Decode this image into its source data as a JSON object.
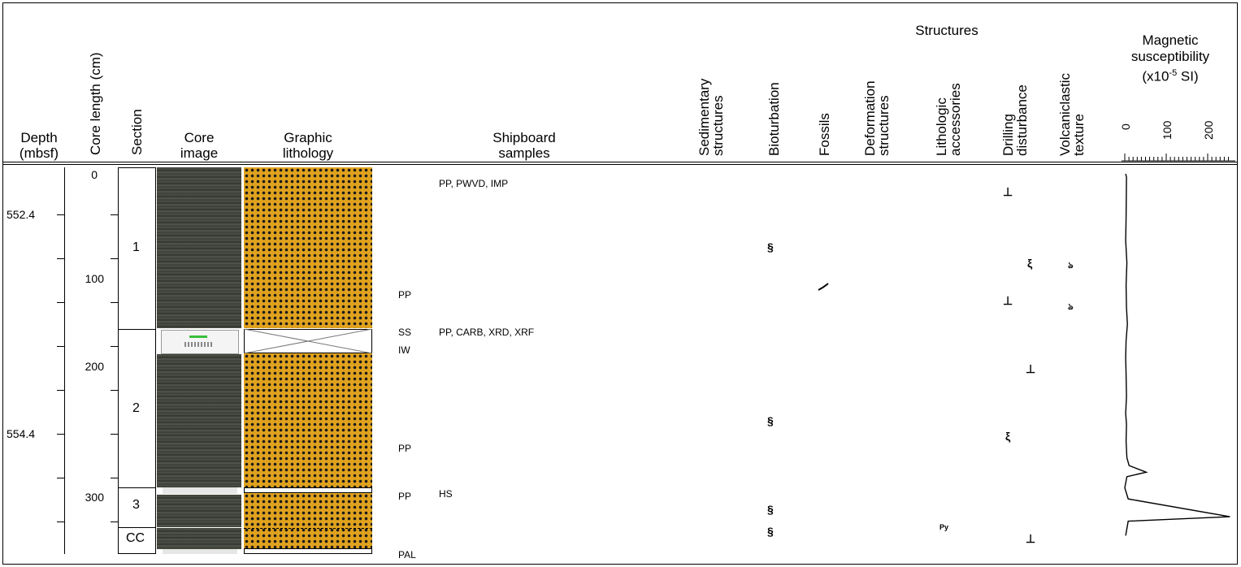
{
  "headers": {
    "depth": [
      "Depth",
      "(mbsf)"
    ],
    "core_length": "Core length (cm)",
    "section": "Section",
    "core_image": [
      "Core",
      "image"
    ],
    "graphic_lithology": [
      "Graphic",
      "lithology"
    ],
    "shipboard_samples": [
      "Shipboard",
      "samples"
    ],
    "structures": "Structures",
    "sedimentary": [
      "Sedimentary",
      "structures"
    ],
    "bioturbation": "Bioturbation",
    "fossils": "Fossils",
    "deformation": [
      "Deformation",
      "structures"
    ],
    "lithologic": [
      "Lithologic",
      "accessories"
    ],
    "drilling": [
      "Drilling",
      "disturbance"
    ],
    "volcaniclastic": [
      "Volcaniclastic",
      "texture"
    ],
    "magnetic": [
      "Magnetic",
      "susceptibility",
      "(x10",
      "-5",
      " SI)"
    ]
  },
  "mag_ticks": [
    "0",
    "100",
    "200"
  ],
  "depth_labels": [
    "552.4",
    "554.4"
  ],
  "core_length_labels": [
    "0",
    "100",
    "200",
    "300"
  ],
  "sections": [
    "1",
    "2",
    "3",
    "CC"
  ],
  "samples": {
    "s1": "PP, PWVD, IMP",
    "s2": "PP",
    "s3": "SS",
    "s4": "PP, CARB, XRD, XRF",
    "s5": "IW",
    "s6": "PP",
    "s7": "PP",
    "s8": "HS",
    "s9": "PAL"
  },
  "symbols": {
    "bioturbation": "§",
    "drilling_fall_in": "⊥",
    "drilling_slight": "ξ",
    "volcaniclastic": "ঌ",
    "fossil": "⁄",
    "pyrite": "Py"
  },
  "chart_data": {
    "type": "line",
    "title": "",
    "xlabel": "Magnetic susceptibility (x10-5 SI)",
    "ylabel": "Core length (cm)",
    "xlim": [
      0,
      250
    ],
    "ylim": [
      0,
      340
    ],
    "series": [
      {
        "name": "",
        "points": [
          [
            2,
            0
          ],
          [
            4,
            3
          ],
          [
            3,
            40
          ],
          [
            2,
            60
          ],
          [
            5,
            80
          ],
          [
            3,
            100
          ],
          [
            4,
            120
          ],
          [
            6,
            135
          ],
          [
            3,
            150
          ],
          [
            2,
            165
          ],
          [
            3,
            180
          ],
          [
            4,
            200
          ],
          [
            2,
            215
          ],
          [
            4,
            225
          ],
          [
            3,
            240
          ],
          [
            5,
            255
          ],
          [
            10,
            262
          ],
          [
            50,
            268
          ],
          [
            5,
            272
          ],
          [
            0,
            282
          ],
          [
            8,
            292
          ],
          [
            245,
            308
          ],
          [
            8,
            312
          ],
          [
            2,
            325
          ]
        ]
      }
    ]
  }
}
